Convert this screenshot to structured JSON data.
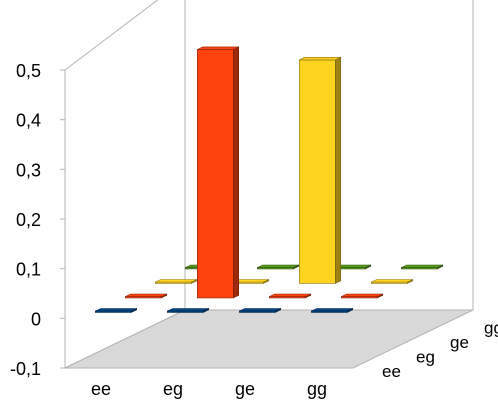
{
  "chart_data": {
    "type": "bar",
    "bar_style": "3d",
    "title": "",
    "xlabel": "",
    "ylabel": "",
    "ylim": [
      -0.1,
      0.5
    ],
    "y_ticks": [
      "-0,1",
      "0",
      "0,1",
      "0,2",
      "0,3",
      "0,4",
      "0,5"
    ],
    "y_tick_values": [
      -0.1,
      0,
      0.1,
      0.2,
      0.3,
      0.4,
      0.5
    ],
    "categories": [
      "ee",
      "eg",
      "ge",
      "gg"
    ],
    "depth_categories": [
      "ee",
      "eg",
      "ge",
      "gg"
    ],
    "grid": false,
    "floor_color": "#d9d9d9",
    "series": [
      {
        "color": "#004586",
        "values": [
          0,
          0,
          0,
          0
        ]
      },
      {
        "color": "#ff420e",
        "values": [
          0,
          0.5,
          0,
          0
        ]
      },
      {
        "color": "#ffd320",
        "values": [
          0,
          0,
          0.45,
          0
        ]
      },
      {
        "color": "#579d1c",
        "values": [
          0,
          0,
          0,
          0
        ]
      }
    ]
  }
}
